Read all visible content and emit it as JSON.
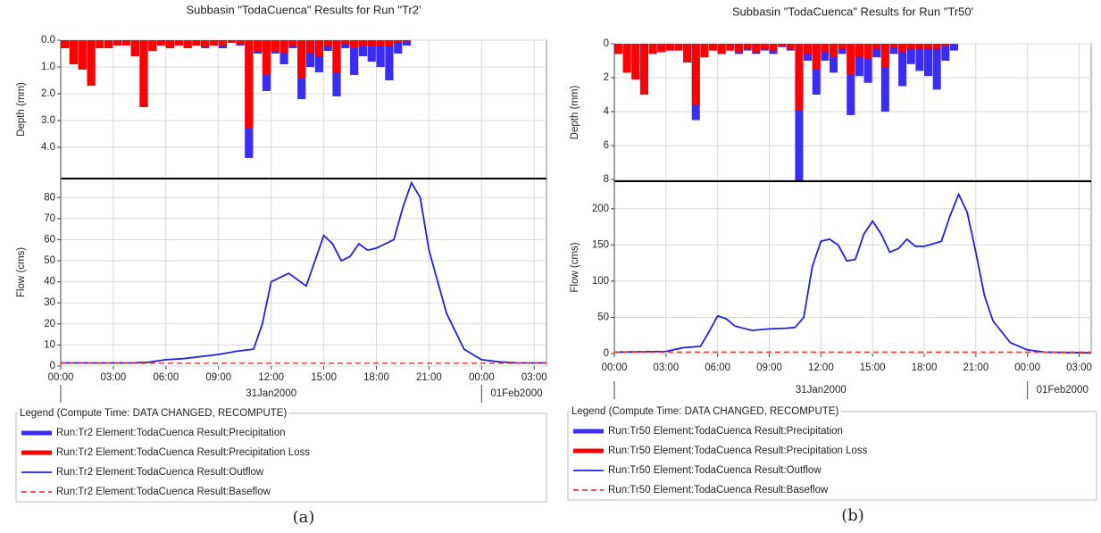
{
  "chart_data": [
    {
      "type": "hydrograph",
      "title": "Subbasin \"TodaCuenca\" Results for Run \"Tr2'",
      "caption": "(a)",
      "legend_title": "Legend (Compute Time: DATA CHANGED, RECOMPUTE)",
      "xlim": [
        0,
        27.7
      ],
      "xticks": [
        {
          "value": 0,
          "label": "00:00"
        },
        {
          "value": 3,
          "label": "03:00"
        },
        {
          "value": 6,
          "label": "06:00"
        },
        {
          "value": 9,
          "label": "09:00"
        },
        {
          "value": 12,
          "label": "12:00"
        },
        {
          "value": 15,
          "label": "15:00"
        },
        {
          "value": 18,
          "label": "18:00"
        },
        {
          "value": 21,
          "label": "21:00"
        },
        {
          "value": 24,
          "label": "00:00"
        },
        {
          "value": 27,
          "label": "03:00"
        }
      ],
      "date_ticks": [
        {
          "value": 0,
          "label": "31Jan2000"
        },
        {
          "value": 24,
          "label": "01Feb2000"
        }
      ],
      "grid": true,
      "precip": {
        "ylabel": "Depth (mm)",
        "inverted": true,
        "ylim": [
          0,
          5.17
        ],
        "yticks": [
          {
            "value": 0,
            "label": "0.0"
          },
          {
            "value": 1,
            "label": "1.0"
          },
          {
            "value": 2,
            "label": "2.0"
          },
          {
            "value": 3,
            "label": "3.0"
          },
          {
            "value": 4,
            "label": "4.0"
          }
        ],
        "bin_width": 0.5,
        "x": [
          0,
          0.5,
          1,
          1.5,
          2,
          2.5,
          3,
          3.5,
          4,
          4.5,
          5,
          5.5,
          6,
          6.5,
          7,
          7.5,
          8,
          8.5,
          9,
          9.5,
          10,
          10.5,
          11,
          11.5,
          12,
          12.5,
          13,
          13.5,
          14,
          14.5,
          15,
          15.5,
          16,
          16.5,
          17,
          17.5,
          18,
          18.5,
          19,
          19.5
        ],
        "series": [
          {
            "name": "Run:Tr2 Element:TodaCuenca Result:Precipitation",
            "color": "#3a2cf5",
            "values": [
              0.3,
              0.9,
              1.1,
              1.7,
              0.3,
              0.3,
              0.2,
              0.2,
              0.6,
              2.5,
              0.4,
              0.2,
              0.3,
              0.2,
              0.3,
              0.2,
              0.3,
              0.2,
              0.3,
              0.1,
              0.2,
              4.4,
              0.5,
              1.9,
              0.5,
              0.9,
              0.3,
              2.2,
              1.0,
              1.2,
              0.4,
              2.1,
              0.3,
              1.3,
              0.6,
              0.8,
              1.0,
              1.5,
              0.5,
              0.2
            ]
          },
          {
            "name": "Run:Tr2 Element:TodaCuenca Result:Precipitation Loss",
            "color": "#ff0000",
            "values": [
              0.3,
              0.9,
              1.1,
              1.7,
              0.3,
              0.3,
              0.2,
              0.2,
              0.6,
              2.5,
              0.4,
              0.2,
              0.3,
              0.2,
              0.3,
              0.2,
              0.25,
              0.2,
              0.2,
              0.1,
              0.15,
              3.3,
              0.4,
              1.3,
              0.4,
              0.5,
              0.2,
              1.4,
              0.5,
              0.6,
              0.2,
              1.2,
              0.15,
              0.3,
              0.2,
              0.2,
              0.2,
              0.2,
              0.1,
              0.05
            ]
          }
        ]
      },
      "flow": {
        "ylabel": "Flow (cms)",
        "ylim": [
          0,
          89
        ],
        "yticks": [
          0,
          10,
          20,
          30,
          40,
          50,
          60,
          70,
          80
        ],
        "series": [
          {
            "name": "Run:Tr2 Element:TodaCuenca Result:Outflow",
            "color": "#2020e0",
            "style": "solid",
            "x": [
              0,
              1,
              2,
              3,
              4,
              5,
              6,
              7,
              8,
              9,
              10,
              11,
              11.5,
              12,
              13,
              14,
              14.5,
              15,
              15.5,
              16,
              16.5,
              17,
              17.5,
              18,
              19,
              19.5,
              20,
              20.5,
              21,
              22,
              23,
              24,
              25,
              26,
              27.7
            ],
            "values": [
              1.5,
              1.5,
              1.5,
              1.5,
              1.5,
              1.8,
              3,
              3.5,
              4.5,
              5.5,
              7,
              8,
              20,
              40,
              44,
              38,
              50,
              62,
              58,
              50,
              52,
              58,
              55,
              56,
              60,
              75,
              87,
              80,
              55,
              25,
              8,
              3,
              2,
              1.5,
              1.5
            ]
          },
          {
            "name": "Run:Tr2 Element:TodaCuenca Result:Baseflow",
            "color": "#e04040",
            "style": "dashed",
            "x": [
              0,
              27.7
            ],
            "values": [
              1.3,
              1.3
            ]
          }
        ]
      }
    },
    {
      "type": "hydrograph",
      "title": "Subbasin \"TodaCuenca\" Results for Run \"Tr50'",
      "caption": "(b)",
      "legend_title": "Legend (Compute Time: DATA CHANGED, RECOMPUTE)",
      "xlim": [
        0,
        27.7
      ],
      "xticks": [
        {
          "value": 0,
          "label": "00:00"
        },
        {
          "value": 3,
          "label": "03:00"
        },
        {
          "value": 6,
          "label": "06:00"
        },
        {
          "value": 9,
          "label": "09:00"
        },
        {
          "value": 12,
          "label": "12:00"
        },
        {
          "value": 15,
          "label": "15:00"
        },
        {
          "value": 18,
          "label": "18:00"
        },
        {
          "value": 21,
          "label": "21:00"
        },
        {
          "value": 24,
          "label": "00:00"
        },
        {
          "value": 27,
          "label": "03:00"
        }
      ],
      "date_ticks": [
        {
          "value": 0,
          "label": "31Jan2000"
        },
        {
          "value": 24,
          "label": "01Feb2000"
        }
      ],
      "grid": true,
      "precip": {
        "ylabel": "Depth (mm)",
        "inverted": true,
        "ylim": [
          0,
          8.1
        ],
        "yticks": [
          0,
          2,
          4,
          6,
          8
        ],
        "bin_width": 0.5,
        "x": [
          0,
          0.5,
          1,
          1.5,
          2,
          2.5,
          3,
          3.5,
          4,
          4.5,
          5,
          5.5,
          6,
          6.5,
          7,
          7.5,
          8,
          8.5,
          9,
          9.5,
          10,
          10.5,
          11,
          11.5,
          12,
          12.5,
          13,
          13.5,
          14,
          14.5,
          15,
          15.5,
          16,
          16.5,
          17,
          17.5,
          18,
          18.5,
          19,
          19.5
        ],
        "series": [
          {
            "name": "Run:Tr50 Element:TodaCuenca Result:Precipitation",
            "color": "#3a2cf5",
            "values": [
              0.6,
              1.7,
              2.1,
              3.0,
              0.6,
              0.5,
              0.4,
              0.4,
              1.1,
              4.5,
              0.8,
              0.4,
              0.6,
              0.4,
              0.6,
              0.4,
              0.6,
              0.4,
              0.6,
              0.2,
              0.4,
              8.1,
              1.0,
              3.0,
              1.0,
              1.7,
              0.6,
              4.2,
              1.9,
              2.3,
              0.8,
              4.0,
              0.6,
              2.5,
              1.2,
              1.6,
              1.9,
              2.7,
              1.0,
              0.4
            ]
          },
          {
            "name": "Run:Tr50 Element:TodaCuenca Result:Precipitation Loss",
            "color": "#ff0000",
            "values": [
              0.6,
              1.7,
              2.1,
              3.0,
              0.6,
              0.5,
              0.4,
              0.4,
              1.1,
              3.6,
              0.8,
              0.4,
              0.6,
              0.4,
              0.5,
              0.3,
              0.5,
              0.3,
              0.4,
              0.15,
              0.3,
              3.9,
              0.6,
              1.5,
              0.5,
              0.8,
              0.3,
              1.8,
              0.8,
              0.9,
              0.3,
              1.4,
              0.2,
              0.5,
              0.3,
              0.3,
              0.3,
              0.3,
              0.1,
              0.05
            ]
          }
        ]
      },
      "flow": {
        "ylabel": "Flow (cms)",
        "ylim": [
          0,
          238
        ],
        "yticks": [
          0,
          50,
          100,
          150,
          200
        ],
        "series": [
          {
            "name": "Run:Tr50 Element:TodaCuenca Result:Outflow",
            "color": "#2020e0",
            "style": "solid",
            "x": [
              0,
              3,
              4,
              5,
              5.5,
              6,
              6.5,
              7,
              8,
              9,
              10,
              10.5,
              11,
              11.5,
              12,
              12.5,
              13,
              13.5,
              14,
              14.5,
              15,
              15.5,
              16,
              16.5,
              17,
              17.5,
              18,
              19,
              19.5,
              20,
              20.5,
              21,
              21.5,
              22,
              23,
              24,
              25,
              27.7
            ],
            "values": [
              2,
              3,
              8,
              10,
              30,
              52,
              48,
              38,
              32,
              34,
              35,
              36,
              50,
              120,
              155,
              158,
              150,
              128,
              130,
              165,
              183,
              165,
              140,
              145,
              158,
              148,
              148,
              155,
              190,
              220,
              195,
              140,
              80,
              45,
              15,
              5,
              2,
              1
            ]
          },
          {
            "name": "Run:Tr50 Element:TodaCuenca Result:Baseflow",
            "color": "#e04040",
            "style": "dashed",
            "x": [
              0,
              27.7
            ],
            "values": [
              2,
              2
            ]
          }
        ]
      }
    }
  ]
}
